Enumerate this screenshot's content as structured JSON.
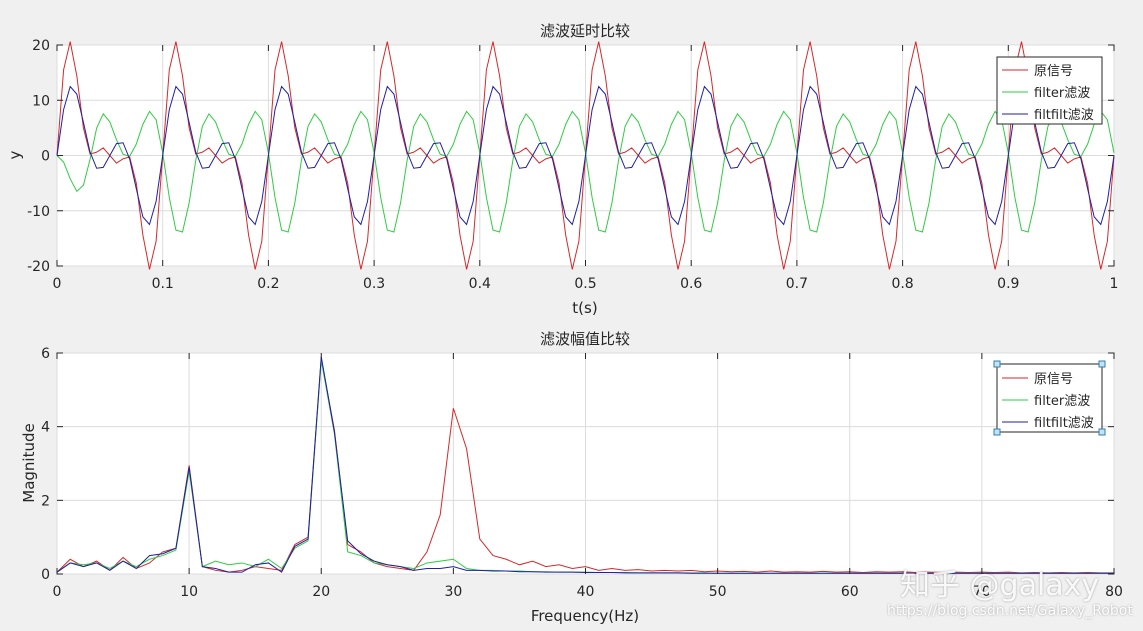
{
  "colors": {
    "original": "#d62728",
    "filter": "#2ecc40",
    "filtfilt": "#1f1fa8",
    "grid": "#dcdcdc",
    "background": "#f0f0f0"
  },
  "chart_data": [
    {
      "type": "line",
      "title": "滤波延时比较",
      "xlabel": "t(s)",
      "ylabel": "y",
      "xlim": [
        0,
        1
      ],
      "ylim": [
        -20,
        20
      ],
      "xticks": [
        "0",
        "0.1",
        "0.2",
        "0.3",
        "0.4",
        "0.5",
        "0.6",
        "0.7",
        "0.8",
        "0.9",
        "1"
      ],
      "yticks": [
        "20",
        "10",
        "0",
        "-10",
        "-20"
      ],
      "grid": true,
      "legend_position": "top-right",
      "sample_rate": 160,
      "series": [
        {
          "name": "原信号",
          "color": "#d62728",
          "signal": "10*sin(2*pi*10*t) + 10*sin(2*pi*20*t) + 5*sin(2*pi*30*t)"
        },
        {
          "name": "filter滤波",
          "color": "#2ecc40",
          "signal": "delayed low-pass of 原信号, peak ≈ ±14.5"
        },
        {
          "name": "filtfilt滤波",
          "color": "#1f1fa8",
          "signal": "zero-phase low-pass of 原信号 (10 Hz + 20 Hz components)"
        }
      ]
    },
    {
      "type": "line",
      "title": "滤波幅值比较",
      "xlabel": "Frequency(Hz)",
      "ylabel": "Magnitude",
      "xlim": [
        0,
        80
      ],
      "ylim": [
        0,
        6
      ],
      "xticks": [
        "0",
        "10",
        "20",
        "30",
        "40",
        "50",
        "60",
        "70",
        "80"
      ],
      "yticks": [
        "6",
        "4",
        "2",
        "0"
      ],
      "grid": true,
      "legend_position": "top-right",
      "x": [
        0,
        1,
        2,
        3,
        4,
        5,
        6,
        7,
        8,
        9,
        10,
        11,
        12,
        13,
        14,
        15,
        16,
        17,
        18,
        19,
        20,
        21,
        22,
        23,
        24,
        25,
        26,
        27,
        28,
        29,
        30,
        31,
        32,
        33,
        34,
        35,
        36,
        37,
        38,
        39,
        40,
        41,
        42,
        43,
        44,
        45,
        46,
        47,
        48,
        49,
        50,
        51,
        52,
        53,
        54,
        55,
        56,
        57,
        58,
        59,
        60,
        61,
        62,
        63,
        64,
        65,
        66,
        67,
        68,
        69,
        70,
        71,
        72,
        73,
        74,
        75,
        76,
        77,
        78,
        79,
        80
      ],
      "series": [
        {
          "name": "原信号",
          "color": "#d62728",
          "values": [
            0.05,
            0.4,
            0.2,
            0.35,
            0.1,
            0.45,
            0.15,
            0.3,
            0.6,
            0.7,
            2.95,
            0.2,
            0.1,
            0.05,
            0.1,
            0.2,
            0.15,
            0.1,
            0.8,
            1.0,
            5.85,
            3.9,
            0.8,
            0.6,
            0.3,
            0.2,
            0.15,
            0.1,
            0.6,
            1.6,
            4.5,
            3.4,
            0.95,
            0.5,
            0.4,
            0.25,
            0.35,
            0.2,
            0.25,
            0.15,
            0.2,
            0.1,
            0.15,
            0.1,
            0.12,
            0.08,
            0.1,
            0.08,
            0.1,
            0.06,
            0.08,
            0.06,
            0.07,
            0.05,
            0.08,
            0.05,
            0.06,
            0.05,
            0.07,
            0.05,
            0.06,
            0.04,
            0.06,
            0.05,
            0.06,
            0.04,
            0.05,
            0.04,
            0.05,
            0.04,
            0.05,
            0.04,
            0.05,
            0.03,
            0.04,
            0.03,
            0.04,
            0.03,
            0.04,
            0.03,
            0.03
          ]
        },
        {
          "name": "filter滤波",
          "color": "#2ecc40",
          "values": [
            0.05,
            0.3,
            0.25,
            0.3,
            0.15,
            0.35,
            0.2,
            0.4,
            0.5,
            0.65,
            2.8,
            0.2,
            0.35,
            0.25,
            0.3,
            0.2,
            0.4,
            0.15,
            0.7,
            0.9,
            5.8,
            3.8,
            0.6,
            0.5,
            0.3,
            0.25,
            0.2,
            0.15,
            0.3,
            0.35,
            0.4,
            0.15,
            0.1,
            0.1,
            0.08,
            0.08,
            0.06,
            0.06,
            0.05,
            0.05,
            0.05,
            0.04,
            0.04,
            0.04,
            0.03,
            0.03,
            0.03,
            0.03,
            0.03,
            0.03,
            0.02,
            0.02,
            0.02,
            0.02,
            0.02,
            0.02,
            0.02,
            0.02,
            0.02,
            0.02,
            0.02,
            0.02,
            0.02,
            0.02,
            0.02,
            0.02,
            0.02,
            0.02,
            0.02,
            0.02,
            0.02,
            0.02,
            0.02,
            0.02,
            0.02,
            0.02,
            0.02,
            0.02,
            0.02,
            0.02,
            0.02
          ]
        },
        {
          "name": "filtfilt滤波",
          "color": "#1f1fa8",
          "values": [
            0.05,
            0.3,
            0.2,
            0.3,
            0.1,
            0.35,
            0.15,
            0.5,
            0.55,
            0.7,
            2.9,
            0.2,
            0.15,
            0.05,
            0.05,
            0.25,
            0.3,
            0.05,
            0.75,
            0.95,
            5.9,
            3.85,
            0.9,
            0.55,
            0.35,
            0.25,
            0.2,
            0.1,
            0.15,
            0.15,
            0.2,
            0.1,
            0.1,
            0.08,
            0.08,
            0.06,
            0.06,
            0.05,
            0.05,
            0.05,
            0.04,
            0.04,
            0.04,
            0.03,
            0.03,
            0.03,
            0.03,
            0.03,
            0.02,
            0.02,
            0.02,
            0.02,
            0.02,
            0.02,
            0.02,
            0.02,
            0.02,
            0.02,
            0.02,
            0.02,
            0.02,
            0.02,
            0.02,
            0.02,
            0.02,
            0.02,
            0.02,
            0.02,
            0.02,
            0.02,
            0.02,
            0.02,
            0.02,
            0.02,
            0.02,
            0.02,
            0.02,
            0.02,
            0.02,
            0.02,
            0.02
          ]
        }
      ]
    }
  ],
  "watermark": {
    "brand": "知乎 @galaxy",
    "url": "https://blog.csdn.net/Galaxy_Robot"
  }
}
